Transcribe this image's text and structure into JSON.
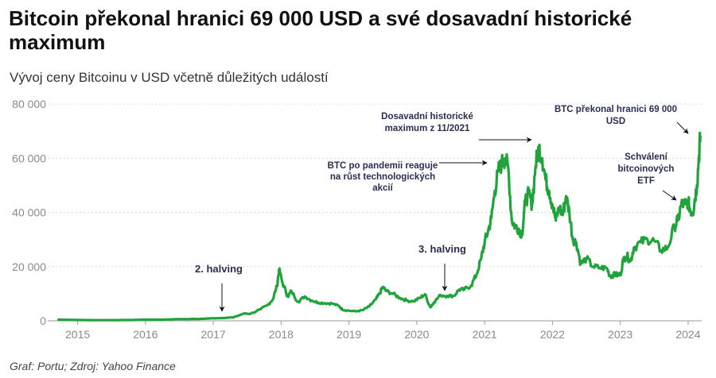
{
  "header": {
    "title": "Bitcoin překonal hranici 69 000 USD a své dosavadní historické maximum",
    "subtitle": "Vývoj ceny Bitcoinu v USD včetně důležitých událostí",
    "source": "Graf: Portu; Zdroj: Yahoo Finance"
  },
  "chart_data": {
    "type": "line",
    "title": "Bitcoin překonal hranici 69 000 USD a své dosavadní historické maximum",
    "subtitle": "Vývoj ceny Bitcoinu v USD včetně důležitých událostí",
    "xlabel": "",
    "ylabel": "",
    "ylim": [
      0,
      80000
    ],
    "xlim": [
      2014.7,
      2024.2
    ],
    "grid": true,
    "line_color": "#1fa33a",
    "yticks": [
      0,
      20000,
      40000,
      60000,
      80000
    ],
    "ytick_labels": [
      "0",
      "20 000",
      "40 000",
      "60 000",
      "80 000"
    ],
    "xticks": [
      2015,
      2016,
      2017,
      2018,
      2019,
      2020,
      2021,
      2022,
      2023,
      2024
    ],
    "xtick_labels": [
      "2015",
      "2016",
      "2017",
      "2018",
      "2019",
      "2020",
      "2021",
      "2022",
      "2023",
      "2024"
    ],
    "series": [
      {
        "x": [
          2014.72,
          2014.85,
          2015.0,
          2015.2,
          2015.5,
          2015.8,
          2015.95,
          2016.2,
          2016.5,
          2016.8,
          2016.95,
          2017.1,
          2017.3,
          2017.45,
          2017.55,
          2017.7,
          2017.8,
          2017.88,
          2017.94,
          2017.97,
          2018.02,
          2018.1,
          2018.15,
          2018.25,
          2018.35,
          2018.45,
          2018.55,
          2018.65,
          2018.75,
          2018.85,
          2018.9,
          2018.97,
          2019.1,
          2019.2,
          2019.3,
          2019.4,
          2019.45,
          2019.5,
          2019.55,
          2019.65,
          2019.75,
          2019.85,
          2019.95,
          2020.05,
          2020.12,
          2020.2,
          2020.25,
          2020.35,
          2020.45,
          2020.55,
          2020.62,
          2020.7,
          2020.8,
          2020.88,
          2020.95,
          2021.0,
          2021.05,
          2021.1,
          2021.15,
          2021.2,
          2021.25,
          2021.3,
          2021.35,
          2021.4,
          2021.45,
          2021.5,
          2021.55,
          2021.6,
          2021.65,
          2021.7,
          2021.75,
          2021.8,
          2021.85,
          2021.9,
          2021.95,
          2022.0,
          2022.05,
          2022.1,
          2022.15,
          2022.2,
          2022.25,
          2022.3,
          2022.35,
          2022.42,
          2022.5,
          2022.6,
          2022.7,
          2022.8,
          2022.85,
          2022.9,
          2022.95,
          2023.0,
          2023.05,
          2023.1,
          2023.15,
          2023.2,
          2023.3,
          2023.4,
          2023.5,
          2023.6,
          2023.7,
          2023.8,
          2023.85,
          2023.9,
          2023.95,
          2024.0,
          2024.03,
          2024.07,
          2024.1,
          2024.13,
          2024.16,
          2024.18
        ],
        "values": [
          450,
          380,
          300,
          250,
          270,
          300,
          430,
          420,
          650,
          700,
          900,
          1000,
          1300,
          2700,
          2600,
          4300,
          5800,
          8000,
          13000,
          19000,
          14000,
          9000,
          11000,
          7000,
          9000,
          7500,
          6700,
          6500,
          6400,
          5500,
          4200,
          3800,
          3500,
          3900,
          5300,
          8000,
          10000,
          12500,
          11000,
          10000,
          8500,
          7500,
          7200,
          8500,
          9800,
          5000,
          6800,
          9500,
          9200,
          9200,
          11500,
          11500,
          13000,
          17000,
          23000,
          29000,
          33000,
          38000,
          48000,
          55000,
          58000,
          60000,
          56000,
          37000,
          35000,
          34000,
          32000,
          44000,
          47000,
          43000,
          57000,
          64000,
          60000,
          52000,
          48000,
          43000,
          37000,
          42000,
          39000,
          46000,
          40000,
          30000,
          29000,
          21000,
          23000,
          20000,
          19500,
          19500,
          16500,
          17000,
          17000,
          17000,
          23000,
          24000,
          22000,
          27000,
          29000,
          30000,
          29500,
          26000,
          27000,
          35000,
          37000,
          43000,
          43000,
          44000,
          41000,
          40000,
          45000,
          50000,
          61000,
          68000
        ]
      }
    ],
    "annotations": [
      {
        "id": "halving-2",
        "lines": [
          "2. halving"
        ]
      },
      {
        "id": "halving-3",
        "lines": [
          "3. halving"
        ]
      },
      {
        "id": "pandemic",
        "lines": [
          "BTC po pandemii  reaguje",
          "na růst technologických",
          "akcií"
        ]
      },
      {
        "id": "ath-2021",
        "lines": [
          "Dosavadní historické",
          "maximum z 11/2021"
        ]
      },
      {
        "id": "btc-69k",
        "lines": [
          "BTC překonal hranici 69 000",
          "USD"
        ]
      },
      {
        "id": "etf",
        "lines": [
          "Schválení",
          "bitcoinových",
          "ETF"
        ]
      }
    ]
  }
}
